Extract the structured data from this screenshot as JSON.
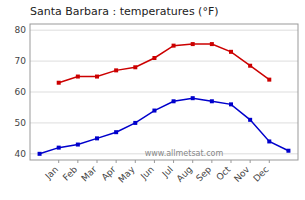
{
  "chart_data": {
    "type": "line",
    "title": "Santa Barbara : temperatures (°F)",
    "categories": [
      null,
      "Jan",
      "Feb",
      "Mar",
      "Apr",
      "May",
      "Jun",
      "Jul",
      "Aug",
      "Sep",
      "Oct",
      "Nov",
      "Dec",
      null
    ],
    "series": [
      {
        "color": "#cc0000",
        "marker": "square",
        "values": [
          null,
          63,
          65,
          65,
          67,
          68,
          71,
          75,
          75.5,
          75.5,
          73,
          68.5,
          64,
          null
        ]
      },
      {
        "color": "#0000cc",
        "marker": "square",
        "values": [
          40,
          42,
          43,
          45,
          47,
          50,
          54,
          57,
          58,
          57,
          56,
          51,
          44,
          41
        ]
      }
    ],
    "ylim": [
      38,
      82
    ],
    "yticks": [
      40,
      50,
      60,
      70,
      80
    ],
    "grid": true,
    "annotations": [
      "www.allmetsat.com"
    ]
  }
}
